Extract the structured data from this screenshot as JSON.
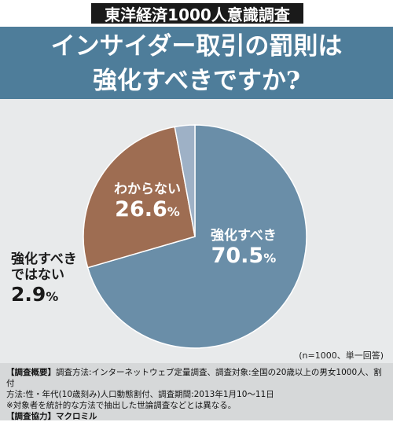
{
  "survey_tag": "東洋経済1000人意識調査",
  "title": {
    "line1": "インサイダー取引の罰則は",
    "line2": "強化すべきですか?"
  },
  "chart_data": {
    "type": "pie",
    "categories": [
      "強化すべき",
      "わからない",
      "強化すべきではない"
    ],
    "values": [
      70.5,
      26.6,
      2.9
    ],
    "unit": "%",
    "colors": [
      "#6a8ea8",
      "#9e6d52",
      "#9eb1c6"
    ],
    "labels": [
      {
        "name": "強化すべき",
        "value": "70.5",
        "unit": "%"
      },
      {
        "name": "わからない",
        "value": "26.6",
        "unit": "%"
      },
      {
        "name_line1": "強化すべき",
        "name_line2": "ではない",
        "value": "2.9",
        "unit": "%"
      }
    ],
    "sample_note": "(n=1000、単一回答)"
  },
  "footer": {
    "line1_bold": "【調査概要】",
    "line1": "調査方法:インターネットウェブ定量調査、調査対象:全国の20歳以上の男女1000人、割付",
    "line2": "方法:性・年代(10歳刻み)人口動態割付、調査期間:2013年1月10〜11日",
    "line3": "※対象者を統計的な方法で抽出した世論調査などとは異なる。",
    "line4_bold": "【調査協力】",
    "line4": "マクロミル"
  }
}
